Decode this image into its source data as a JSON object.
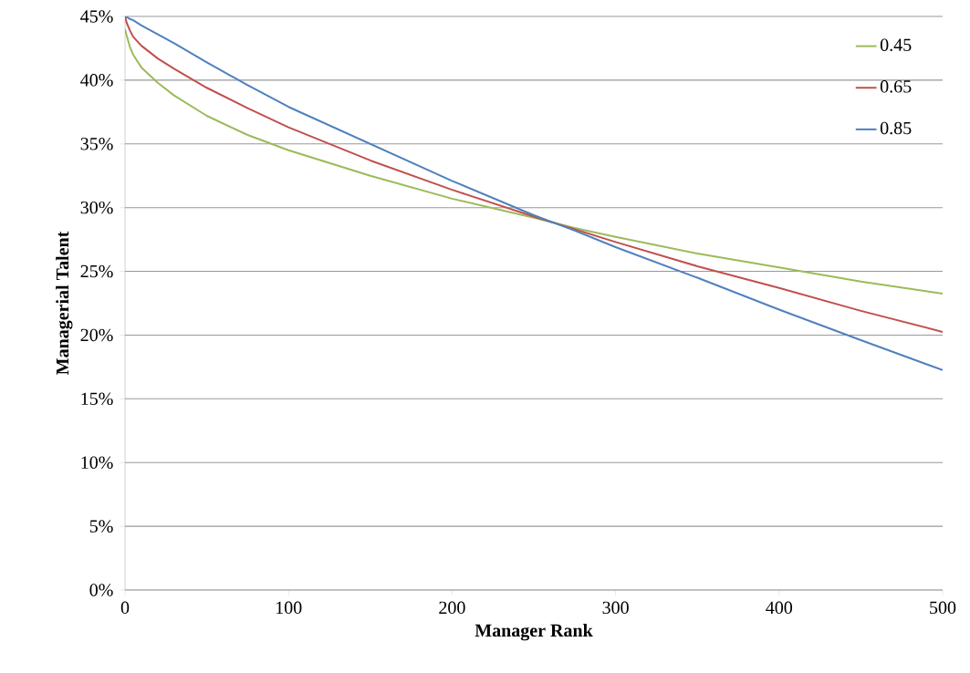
{
  "chart_data": {
    "type": "line",
    "xlabel": "Manager Rank",
    "ylabel": "Managerial Talent",
    "x": [
      0,
      1,
      3,
      5,
      10,
      20,
      30,
      50,
      75,
      100,
      150,
      200,
      250,
      275,
      300,
      350,
      400,
      450,
      500
    ],
    "series": [
      {
        "name": "0.45",
        "color": "#9bbb59",
        "values": [
          44.0,
          43.5,
          42.6,
          42.0,
          41.0,
          39.8,
          38.8,
          37.2,
          35.7,
          34.5,
          32.5,
          30.7,
          29.2,
          28.4,
          27.7,
          26.4,
          25.3,
          24.2,
          23.25
        ]
      },
      {
        "name": "0.65",
        "color": "#c0504d",
        "values": [
          45.0,
          44.5,
          43.9,
          43.4,
          42.7,
          41.7,
          40.9,
          39.4,
          37.8,
          36.3,
          33.7,
          31.4,
          29.3,
          28.3,
          27.3,
          25.4,
          23.7,
          21.9,
          20.25
        ]
      },
      {
        "name": "0.85",
        "color": "#4f81bd",
        "values": [
          45.0,
          44.95,
          44.8,
          44.7,
          44.3,
          43.6,
          42.9,
          41.4,
          39.6,
          37.9,
          35.0,
          32.1,
          29.4,
          28.2,
          26.9,
          24.5,
          22.0,
          19.6,
          17.25
        ]
      }
    ],
    "xlim": [
      0,
      500
    ],
    "xticks": [
      0,
      100,
      200,
      300,
      400,
      500
    ],
    "ylim": [
      0,
      45
    ],
    "yticks": [
      {
        "value": 0,
        "label": "0%"
      },
      {
        "value": 5,
        "label": "5%"
      },
      {
        "value": 10,
        "label": "10%"
      },
      {
        "value": 15,
        "label": "15%"
      },
      {
        "value": 20,
        "label": "20%"
      },
      {
        "value": 25,
        "label": "25%"
      },
      {
        "value": 30,
        "label": "30%"
      },
      {
        "value": 35,
        "label": "35%"
      },
      {
        "value": 40,
        "label": "40%"
      },
      {
        "value": 45,
        "label": "45%"
      }
    ],
    "grid": "y",
    "legend": "top right",
    "marker": "none",
    "line_style": "solid"
  }
}
